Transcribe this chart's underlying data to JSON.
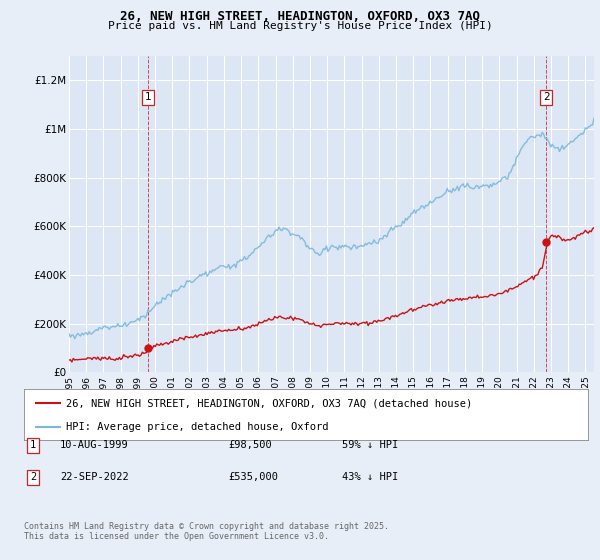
{
  "title": "26, NEW HIGH STREET, HEADINGTON, OXFORD, OX3 7AQ",
  "subtitle": "Price paid vs. HM Land Registry's House Price Index (HPI)",
  "bg_color": "#e8eef8",
  "plot_bg_color": "#dce6f5",
  "grid_color": "#ffffff",
  "hpi_color": "#7ab8d9",
  "price_color": "#cc1111",
  "vline_color": "#cc2222",
  "ylim": [
    0,
    1300000
  ],
  "yticks": [
    0,
    200000,
    400000,
    600000,
    800000,
    1000000,
    1200000
  ],
  "ytick_labels": [
    "£0",
    "£200K",
    "£400K",
    "£600K",
    "£800K",
    "£1M",
    "£1.2M"
  ],
  "legend_line1": "26, NEW HIGH STREET, HEADINGTON, OXFORD, OX3 7AQ (detached house)",
  "legend_line2": "HPI: Average price, detached house, Oxford",
  "annotation1_label": "1",
  "annotation1_date": "10-AUG-1999",
  "annotation1_price": "£98,500",
  "annotation1_note": "59% ↓ HPI",
  "annotation2_label": "2",
  "annotation2_date": "22-SEP-2022",
  "annotation2_price": "£535,000",
  "annotation2_note": "43% ↓ HPI",
  "footer": "Contains HM Land Registry data © Crown copyright and database right 2025.\nThis data is licensed under the Open Government Licence v3.0.",
  "marker1_year": 1999.61,
  "marker1_price": 98500,
  "marker2_year": 2022.72,
  "marker2_price": 535000,
  "xmin": 1995,
  "xmax": 2025.5
}
